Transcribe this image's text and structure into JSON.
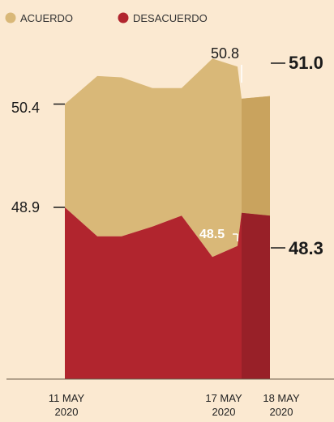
{
  "chart_data": {
    "type": "area",
    "legend": [
      {
        "label": "ACUERDO",
        "color": "#d9b878"
      },
      {
        "label": "DESACUERDO",
        "color": "#b1252e"
      }
    ],
    "legend_position": "top-left",
    "series": [
      {
        "name": "ACUERDO",
        "color": "#d9b878",
        "values": [
          50.4,
          52.5,
          52.4,
          51.6,
          51.6,
          53.8,
          53.2,
          50.8,
          51.0
        ]
      },
      {
        "name": "DESACUERDO",
        "color": "#b1252e",
        "values": [
          48.9,
          46.8,
          46.8,
          47.5,
          48.3,
          45.3,
          46.1,
          48.5,
          48.3
        ]
      }
    ],
    "x_ticks": [
      {
        "line1": "11 MAY",
        "line2": "2020"
      },
      {
        "line1": "17 MAY",
        "line2": "2020"
      },
      {
        "line1": "18 MAY",
        "line2": "2020"
      }
    ],
    "annotations": [
      {
        "text": "50.4"
      },
      {
        "text": "48.9"
      },
      {
        "text": "50.8"
      },
      {
        "text": "48.5"
      },
      {
        "text": "51.0"
      },
      {
        "text": "48.3"
      }
    ],
    "colors": {
      "background": "#fbe9d1",
      "acuerdo": "#d9b878",
      "acuerdo_highlight": "#c9a35e",
      "desacuerdo": "#b1252e",
      "desacuerdo_highlight": "#982028",
      "text": "#1a1a1a",
      "axis": "#6b5a49"
    }
  }
}
